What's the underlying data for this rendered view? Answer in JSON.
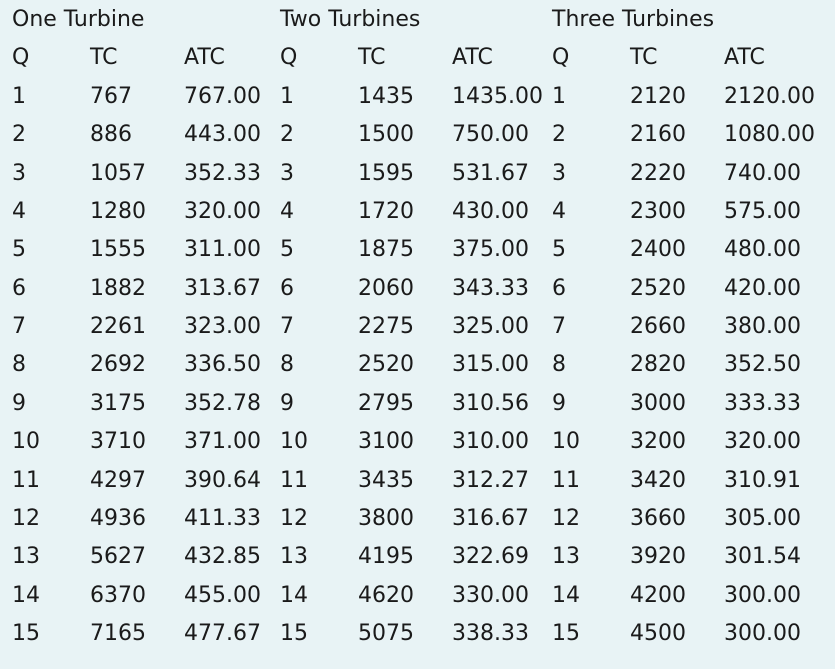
{
  "sections": [
    {
      "title": "One Turbine",
      "headers": [
        "Q",
        "TC",
        "ATC"
      ],
      "rows": [
        [
          "1",
          "767",
          "767.00"
        ],
        [
          "2",
          "886",
          "443.00"
        ],
        [
          "3",
          "1057",
          "352.33"
        ],
        [
          "4",
          "1280",
          "320.00"
        ],
        [
          "5",
          "1555",
          "311.00"
        ],
        [
          "6",
          "1882",
          "313.67"
        ],
        [
          "7",
          "2261",
          "323.00"
        ],
        [
          "8",
          "2692",
          "336.50"
        ],
        [
          "9",
          "3175",
          "352.78"
        ],
        [
          "10",
          "3710",
          "371.00"
        ],
        [
          "11",
          "4297",
          "390.64"
        ],
        [
          "12",
          "4936",
          "411.33"
        ],
        [
          "13",
          "5627",
          "432.85"
        ],
        [
          "14",
          "6370",
          "455.00"
        ],
        [
          "15",
          "7165",
          "477.67"
        ]
      ]
    },
    {
      "title": "Two Turbines",
      "headers": [
        "Q",
        "TC",
        "ATC"
      ],
      "rows": [
        [
          "1",
          "1435",
          "1435.00"
        ],
        [
          "2",
          "1500",
          "750.00"
        ],
        [
          "3",
          "1595",
          "531.67"
        ],
        [
          "4",
          "1720",
          "430.00"
        ],
        [
          "5",
          "1875",
          "375.00"
        ],
        [
          "6",
          "2060",
          "343.33"
        ],
        [
          "7",
          "2275",
          "325.00"
        ],
        [
          "8",
          "2520",
          "315.00"
        ],
        [
          "9",
          "2795",
          "310.56"
        ],
        [
          "10",
          "3100",
          "310.00"
        ],
        [
          "11",
          "3435",
          "312.27"
        ],
        [
          "12",
          "3800",
          "316.67"
        ],
        [
          "13",
          "4195",
          "322.69"
        ],
        [
          "14",
          "4620",
          "330.00"
        ],
        [
          "15",
          "5075",
          "338.33"
        ]
      ]
    },
    {
      "title": "Three Turbines",
      "headers": [
        "Q",
        "TC",
        "ATC"
      ],
      "rows": [
        [
          "1",
          "2120",
          "2120.00"
        ],
        [
          "2",
          "2160",
          "1080.00"
        ],
        [
          "3",
          "2220",
          "740.00"
        ],
        [
          "4",
          "2300",
          "575.00"
        ],
        [
          "5",
          "2400",
          "480.00"
        ],
        [
          "6",
          "2520",
          "420.00"
        ],
        [
          "7",
          "2660",
          "380.00"
        ],
        [
          "8",
          "2820",
          "352.50"
        ],
        [
          "9",
          "3000",
          "333.33"
        ],
        [
          "10",
          "3200",
          "320.00"
        ],
        [
          "11",
          "3420",
          "310.91"
        ],
        [
          "12",
          "3660",
          "305.00"
        ],
        [
          "13",
          "3920",
          "301.54"
        ],
        [
          "14",
          "4200",
          "300.00"
        ],
        [
          "15",
          "4500",
          "300.00"
        ]
      ]
    }
  ]
}
